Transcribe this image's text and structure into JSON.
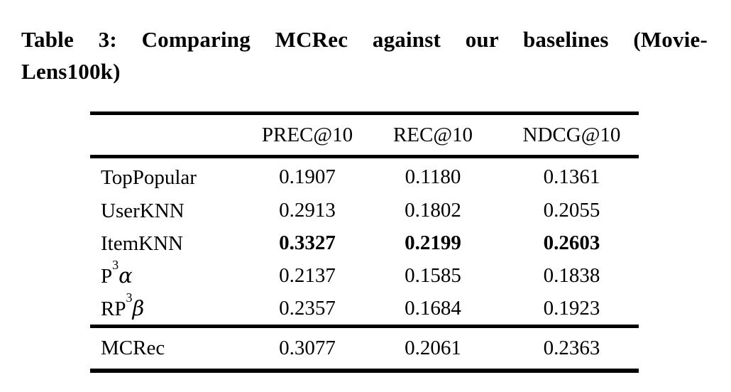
{
  "caption": {
    "line1": "Table 3: Comparing MCRec against our baselines (Movie-",
    "line2": "Lens100k)"
  },
  "table": {
    "headers": [
      "PREC@10",
      "REC@10",
      "NDCG@10"
    ],
    "rows": [
      {
        "label": "TopPopular",
        "sup": "",
        "suffix": "",
        "values": [
          "0.1907",
          "0.1180",
          "0.1361"
        ],
        "bold": false
      },
      {
        "label": "UserKNN",
        "sup": "",
        "suffix": "",
        "values": [
          "0.2913",
          "0.1802",
          "0.2055"
        ],
        "bold": false
      },
      {
        "label": "ItemKNN",
        "sup": "",
        "suffix": "",
        "values": [
          "0.3327",
          "0.2199",
          "0.2603"
        ],
        "bold": true
      },
      {
        "label": "P",
        "sup": "3",
        "suffix": "α",
        "values": [
          "0.2137",
          "0.1585",
          "0.1838"
        ],
        "bold": false
      },
      {
        "label": "RP",
        "sup": "3",
        "suffix": "β",
        "values": [
          "0.2357",
          "0.1684",
          "0.1923"
        ],
        "bold": false
      }
    ],
    "footer": {
      "label": "MCRec",
      "values": [
        "0.3077",
        "0.2061",
        "0.2363"
      ],
      "bold": false
    },
    "text_color": "#000000",
    "background_color": "#ffffff"
  }
}
